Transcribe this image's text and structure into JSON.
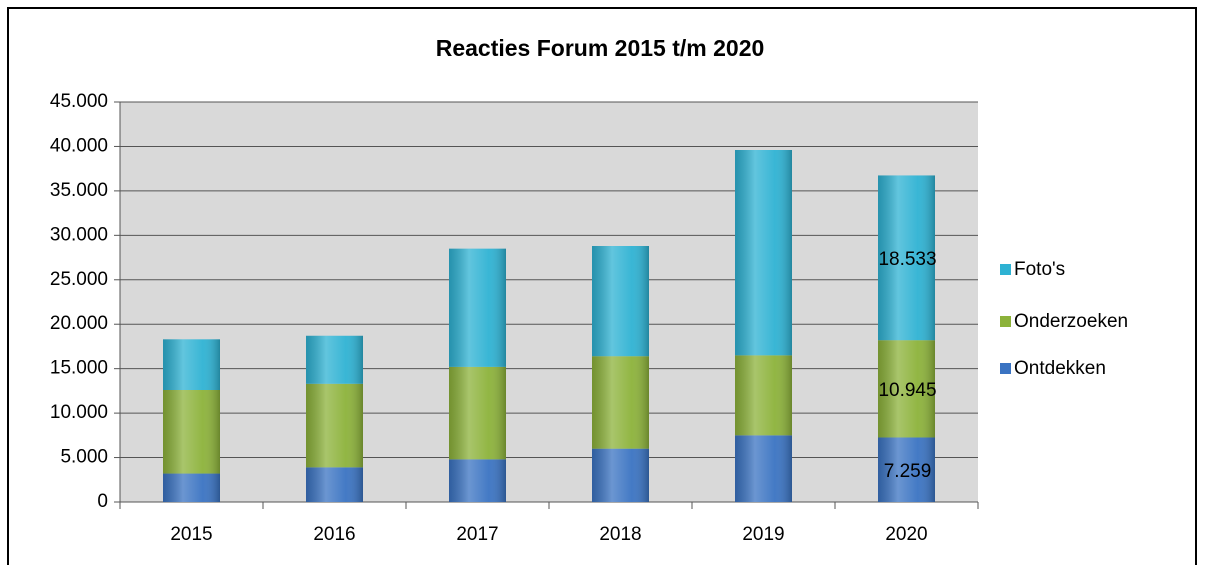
{
  "chart_data": {
    "type": "stacked_bar",
    "title": "Reacties Forum 2015 t/m 2020",
    "categories": [
      "2015",
      "2016",
      "2017",
      "2018",
      "2019",
      "2020"
    ],
    "series": [
      {
        "name": "Ontdekken",
        "color": "#3a73c2",
        "values": [
          3200,
          3900,
          4800,
          6000,
          7500,
          7259
        ],
        "value_labels": [
          null,
          null,
          null,
          null,
          null,
          "7.259"
        ]
      },
      {
        "name": "Onderzoeken",
        "color": "#8cb23a",
        "values": [
          9400,
          9400,
          10400,
          10400,
          9000,
          10945
        ],
        "value_labels": [
          null,
          null,
          null,
          null,
          null,
          "10.945"
        ]
      },
      {
        "name": "Foto's",
        "color": "#2eb2d3",
        "values": [
          5700,
          5400,
          13300,
          12400,
          23100,
          18533
        ],
        "value_labels": [
          null,
          null,
          null,
          null,
          null,
          "18.533"
        ]
      }
    ],
    "ylim": [
      0,
      45000
    ],
    "yticks": [
      0,
      {
        "value": 5000,
        "label": "5.000"
      },
      {
        "value": 10000,
        "label": "10.000"
      },
      {
        "value": 15000,
        "label": "15.000"
      },
      {
        "value": 20000,
        "label": "20.000"
      },
      {
        "value": 25000,
        "label": "25.000"
      },
      {
        "value": 30000,
        "label": "30.000"
      },
      {
        "value": 35000,
        "label": "35.000"
      },
      {
        "value": 40000,
        "label": "40.000"
      },
      {
        "value": 45000,
        "label": "45.000"
      }
    ],
    "grid": true,
    "legend": "right"
  }
}
